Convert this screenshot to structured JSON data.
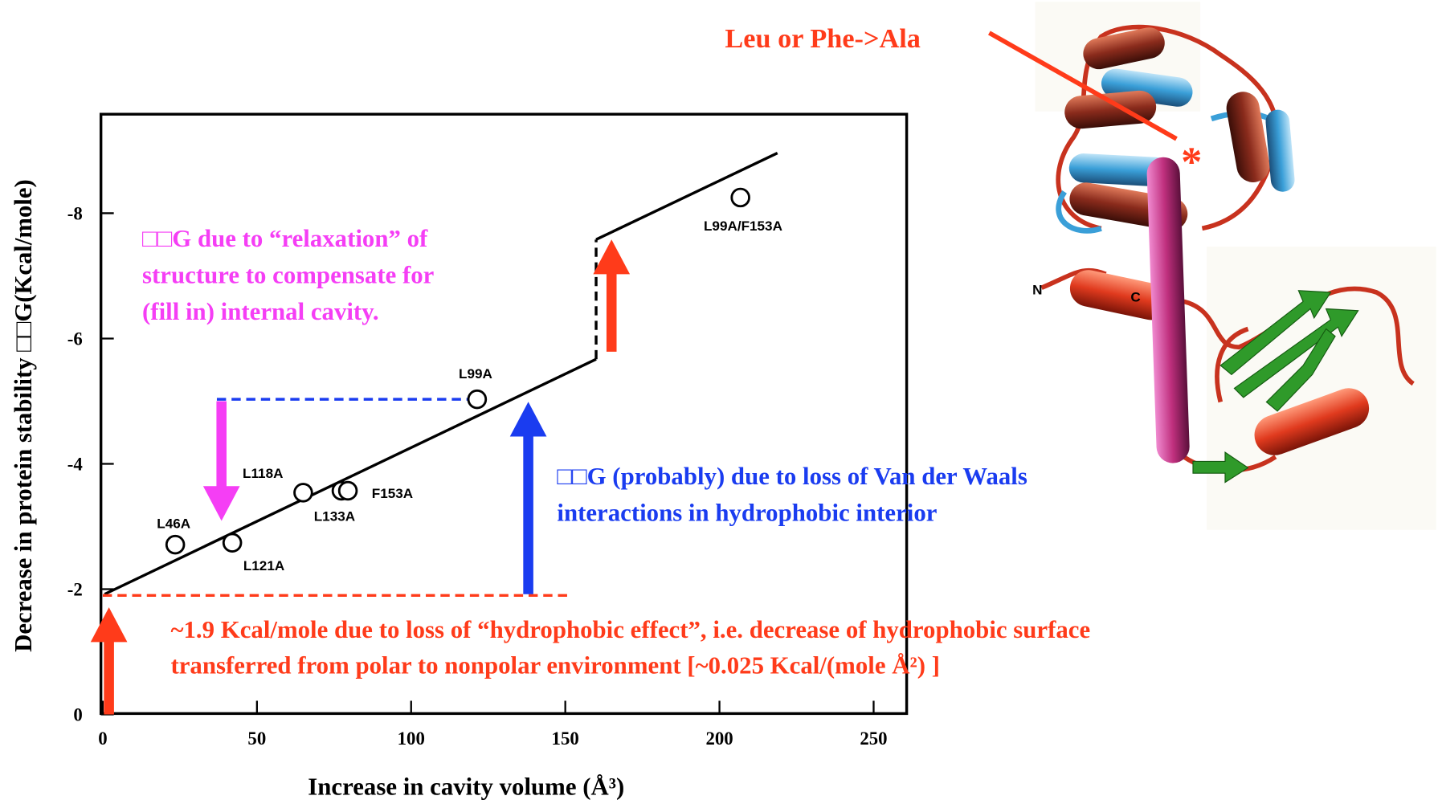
{
  "chart_data": {
    "type": "scatter",
    "xlabel": "Increase in cavity volume (Å³)",
    "ylabel": "Decrease in protein stability □□G(Kcal/mole)",
    "xlim": [
      0,
      260
    ],
    "ylim": [
      0,
      -9.58
    ],
    "xticks": [
      0,
      50,
      100,
      150,
      200,
      250
    ],
    "yticks": [
      0,
      -2,
      -4,
      -6,
      -8
    ],
    "points": {
      "x": [
        23.5,
        42,
        65,
        77.4,
        79.5,
        121.4,
        206.8
      ],
      "y": [
        -2.71,
        -2.74,
        -3.54,
        -3.57,
        -3.57,
        -5.03,
        -8.25
      ],
      "labels": [
        "L46A",
        "L121A",
        "L118A",
        "L133A",
        "F153A",
        "L99A",
        "L99A/F153A"
      ]
    },
    "lines": [
      {
        "x": [
          0.6,
          160
        ],
        "y": [
          -1.92,
          -5.67
        ],
        "color": "#000000",
        "dashed": false
      },
      {
        "x": [
          160,
          160
        ],
        "y": [
          -5.67,
          -7.58
        ],
        "color": "#000000",
        "dashed": true
      },
      {
        "x": [
          160,
          218.8
        ],
        "y": [
          -7.58,
          -8.96
        ],
        "color": "#000000",
        "dashed": false
      },
      {
        "x": [
          37,
          121.4
        ],
        "y": [
          -5.03,
          -5.03
        ],
        "color": "#1a3cf0",
        "dashed": true
      },
      {
        "x": [
          0,
          151
        ],
        "y": [
          -1.9,
          -1.9
        ],
        "color": "#ff3b1a",
        "dashed": true
      }
    ],
    "arrows": [
      {
        "x": 38.5,
        "y": [
          -5.0,
          -3.09
        ],
        "color": "#f53ef5"
      },
      {
        "x": 138,
        "y": [
          -1.92,
          -4.99
        ],
        "color": "#1a3cf0"
      },
      {
        "x": 2,
        "y": [
          0,
          -1.71
        ],
        "color": "#ff3b1a"
      },
      {
        "x": 165,
        "y": [
          -5.79,
          -7.58
        ],
        "color": "#ff3b1a"
      }
    ],
    "annotations": [
      {
        "lines": [
          "□□G due to “relaxation” of",
          "structure to compensate for",
          "(fill in) internal cavity."
        ],
        "color": "#f53ef5"
      },
      {
        "lines": [
          "□□G (probably) due to loss of Van der Waals",
          "interactions in hydrophobic interior"
        ],
        "color": "#1a3cf0"
      },
      {
        "lines": [
          "~1.9 Kcal/mole due to loss of “hydrophobic effect”, i.e. decrease of hydrophobic surface",
          "transferred from polar to nonpolar environment [~0.025 Kcal/(mole Å²) ]"
        ],
        "color": "#ff3b1a"
      }
    ]
  },
  "figure": {
    "callout": "Leu or Phe->Ala",
    "marker": "*",
    "n_label": "N",
    "c_label": "C"
  }
}
